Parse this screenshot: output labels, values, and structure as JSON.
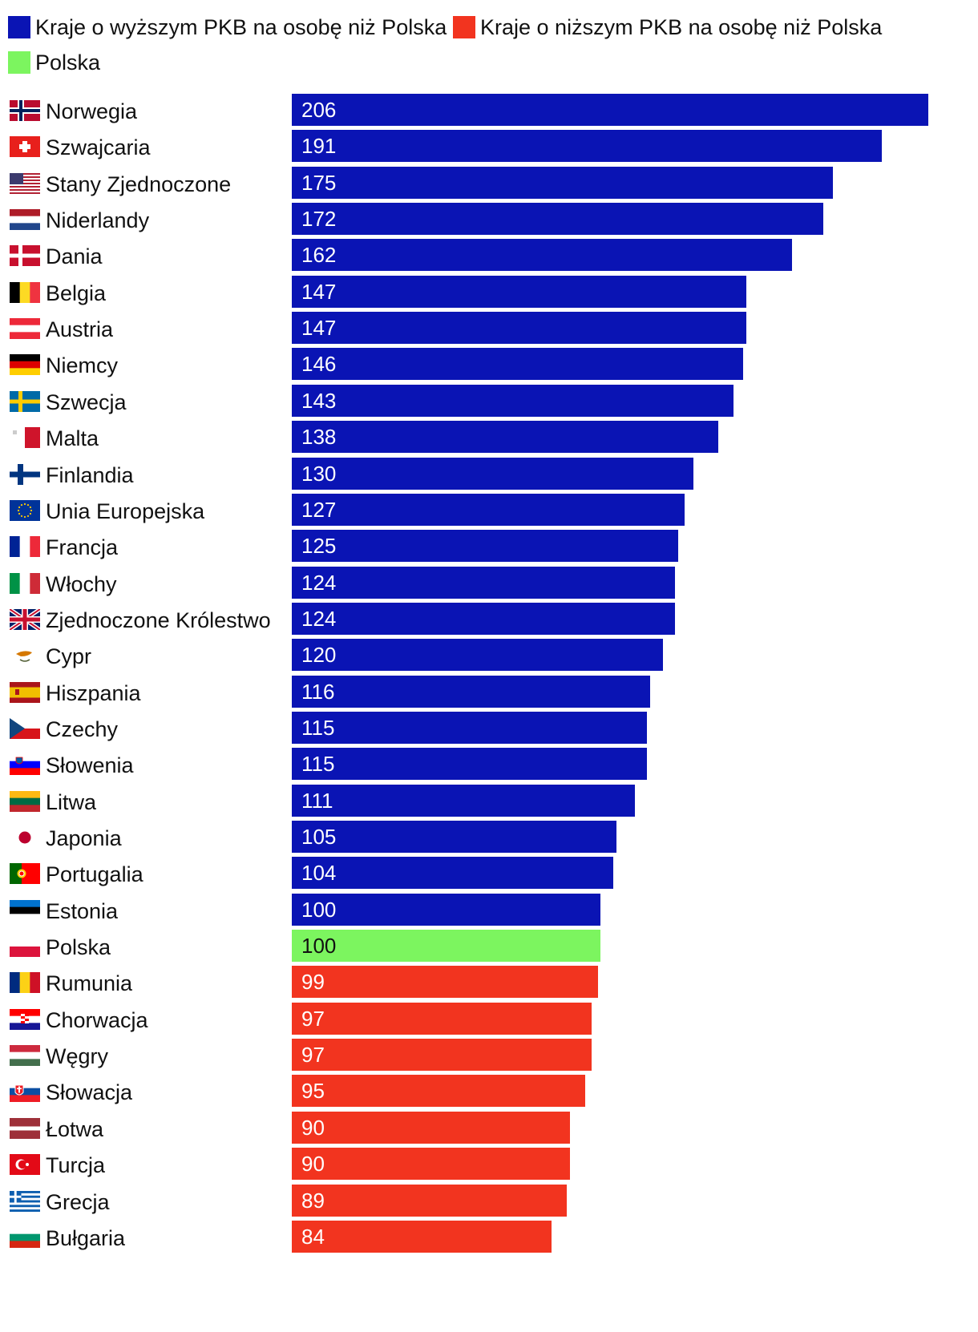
{
  "legend": [
    {
      "label": "Kraje o wyższym PKB na osobę niż Polska",
      "color": "#0a14b4"
    },
    {
      "label": "Kraje o niższym PKB na osobę niż Polska",
      "color": "#f2341f"
    },
    {
      "label": "Polska",
      "color": "#7cf55f"
    }
  ],
  "chart_data": {
    "type": "bar",
    "orientation": "horizontal",
    "title": "",
    "xlabel": "",
    "ylabel": "",
    "xlim": [
      0,
      206
    ],
    "colors": {
      "higher": "#0a14b4",
      "lower": "#f2341f",
      "poland": "#7cf55f"
    },
    "rows": [
      {
        "country": "Norwegia",
        "value": 206,
        "group": "higher",
        "flag": "norway-flag"
      },
      {
        "country": "Szwajcaria",
        "value": 191,
        "group": "higher",
        "flag": "switzerland-flag"
      },
      {
        "country": "Stany Zjednoczone",
        "value": 175,
        "group": "higher",
        "flag": "usa-flag"
      },
      {
        "country": "Niderlandy",
        "value": 172,
        "group": "higher",
        "flag": "netherlands-flag"
      },
      {
        "country": "Dania",
        "value": 162,
        "group": "higher",
        "flag": "denmark-flag"
      },
      {
        "country": "Belgia",
        "value": 147,
        "group": "higher",
        "flag": "belgium-flag"
      },
      {
        "country": "Austria",
        "value": 147,
        "group": "higher",
        "flag": "austria-flag"
      },
      {
        "country": "Niemcy",
        "value": 146,
        "group": "higher",
        "flag": "germany-flag"
      },
      {
        "country": "Szwecja",
        "value": 143,
        "group": "higher",
        "flag": "sweden-flag"
      },
      {
        "country": "Malta",
        "value": 138,
        "group": "higher",
        "flag": "malta-flag"
      },
      {
        "country": "Finlandia",
        "value": 130,
        "group": "higher",
        "flag": "finland-flag"
      },
      {
        "country": "Unia Europejska",
        "value": 127,
        "group": "higher",
        "flag": "eu-flag"
      },
      {
        "country": "Francja",
        "value": 125,
        "group": "higher",
        "flag": "france-flag"
      },
      {
        "country": "Włochy",
        "value": 124,
        "group": "higher",
        "flag": "italy-flag"
      },
      {
        "country": "Zjednoczone Królestwo",
        "value": 124,
        "group": "higher",
        "flag": "uk-flag"
      },
      {
        "country": "Cypr",
        "value": 120,
        "group": "higher",
        "flag": "cyprus-flag"
      },
      {
        "country": "Hiszpania",
        "value": 116,
        "group": "higher",
        "flag": "spain-flag"
      },
      {
        "country": "Czechy",
        "value": 115,
        "group": "higher",
        "flag": "czechia-flag"
      },
      {
        "country": "Słowenia",
        "value": 115,
        "group": "higher",
        "flag": "slovenia-flag"
      },
      {
        "country": "Litwa",
        "value": 111,
        "group": "higher",
        "flag": "lithuania-flag"
      },
      {
        "country": "Japonia",
        "value": 105,
        "group": "higher",
        "flag": "japan-flag"
      },
      {
        "country": "Portugalia",
        "value": 104,
        "group": "higher",
        "flag": "portugal-flag"
      },
      {
        "country": "Estonia",
        "value": 100,
        "group": "higher",
        "flag": "estonia-flag"
      },
      {
        "country": "Polska",
        "value": 100,
        "group": "poland",
        "flag": "poland-flag"
      },
      {
        "country": "Rumunia",
        "value": 99,
        "group": "lower",
        "flag": "romania-flag"
      },
      {
        "country": "Chorwacja",
        "value": 97,
        "group": "lower",
        "flag": "croatia-flag"
      },
      {
        "country": "Węgry",
        "value": 97,
        "group": "lower",
        "flag": "hungary-flag"
      },
      {
        "country": "Słowacja",
        "value": 95,
        "group": "lower",
        "flag": "slovakia-flag"
      },
      {
        "country": "Łotwa",
        "value": 90,
        "group": "lower",
        "flag": "latvia-flag"
      },
      {
        "country": "Turcja",
        "value": 90,
        "group": "lower",
        "flag": "turkey-flag"
      },
      {
        "country": "Grecja",
        "value": 89,
        "group": "lower",
        "flag": "greece-flag"
      },
      {
        "country": "Bułgaria",
        "value": 84,
        "group": "lower",
        "flag": "bulgaria-flag"
      }
    ]
  }
}
